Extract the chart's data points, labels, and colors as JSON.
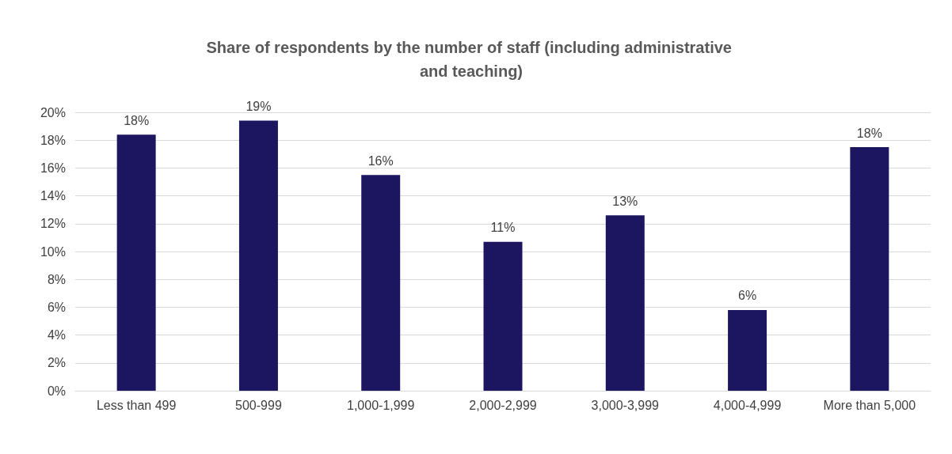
{
  "chart_data": {
    "type": "bar",
    "title": "Share of respondents by the number of staff (including administrative and teaching)",
    "categories": [
      "Less than 499",
      "500-999",
      "1,000-1,999",
      "2,000-2,999",
      "3,000-3,999",
      "4,000-4,999",
      "More than 5,000"
    ],
    "values": [
      18.4,
      19.4,
      15.5,
      10.7,
      12.6,
      5.8,
      17.5
    ],
    "value_labels": [
      "18%",
      "19%",
      "16%",
      "11%",
      "13%",
      "6%",
      "18%"
    ],
    "color": "#1c1660",
    "ylim": [
      0,
      20
    ],
    "yticks": [
      {
        "value": 0,
        "label": "0%"
      },
      {
        "value": 2,
        "label": "2%"
      },
      {
        "value": 4,
        "label": "4%"
      },
      {
        "value": 6,
        "label": "6%"
      },
      {
        "value": 8,
        "label": "8%"
      },
      {
        "value": 10,
        "label": "10%"
      },
      {
        "value": 12,
        "label": "12%"
      },
      {
        "value": 14,
        "label": "14%"
      },
      {
        "value": 16,
        "label": "16%"
      },
      {
        "value": 18,
        "label": "18%"
      },
      {
        "value": 20,
        "label": "20%"
      }
    ],
    "grid": "y"
  }
}
